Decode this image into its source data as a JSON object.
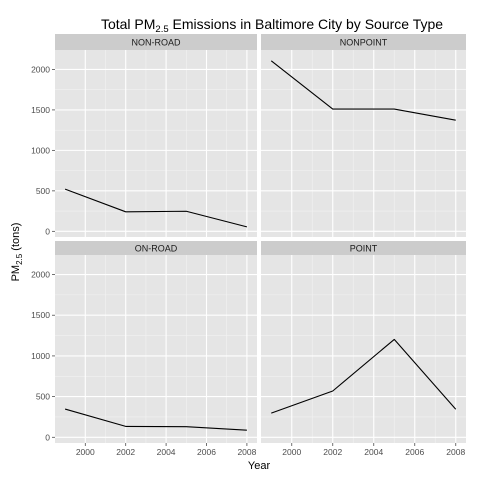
{
  "chart_data": {
    "type": "line",
    "title": "Total PM",
    "title_sub": "2.5",
    "title_rest": " Emissions in Baltimore City by Source Type",
    "xlabel": "Year",
    "ylabel_main": "PM",
    "ylabel_sub": "2.5",
    "ylabel_rest": " (tons)",
    "xlim": [
      1998.5,
      2008.5
    ],
    "ylim": [
      -70,
      2240
    ],
    "x_ticks": [
      2000,
      2002,
      2004,
      2006,
      2008
    ],
    "x_tick_labels": [
      "2000",
      "2002",
      "2004",
      "2006",
      "2008"
    ],
    "y_ticks": [
      0,
      500,
      1000,
      1500,
      2000
    ],
    "y_tick_labels": [
      "0",
      "500",
      "1000",
      "1500",
      "2000"
    ],
    "grid": true,
    "colors": {
      "panel_bg": "#e5e5e5",
      "strip_bg": "#cccccc",
      "grid_major": "#ffffff",
      "grid_minor": "#f2f2f2",
      "line": "#000000"
    },
    "facets": [
      {
        "label": "NON-ROAD",
        "x": [
          1999,
          2002,
          2005,
          2008
        ],
        "y": [
          522,
          241,
          248,
          55
        ]
      },
      {
        "label": "NONPOINT",
        "x": [
          1999,
          2002,
          2005,
          2008
        ],
        "y": [
          2107,
          1510,
          1510,
          1373
        ]
      },
      {
        "label": "ON-ROAD",
        "x": [
          1999,
          2002,
          2005,
          2008
        ],
        "y": [
          347,
          134,
          130,
          88
        ]
      },
      {
        "label": "POINT",
        "x": [
          1999,
          2002,
          2005,
          2008
        ],
        "y": [
          297,
          569,
          1203,
          345
        ]
      }
    ]
  }
}
